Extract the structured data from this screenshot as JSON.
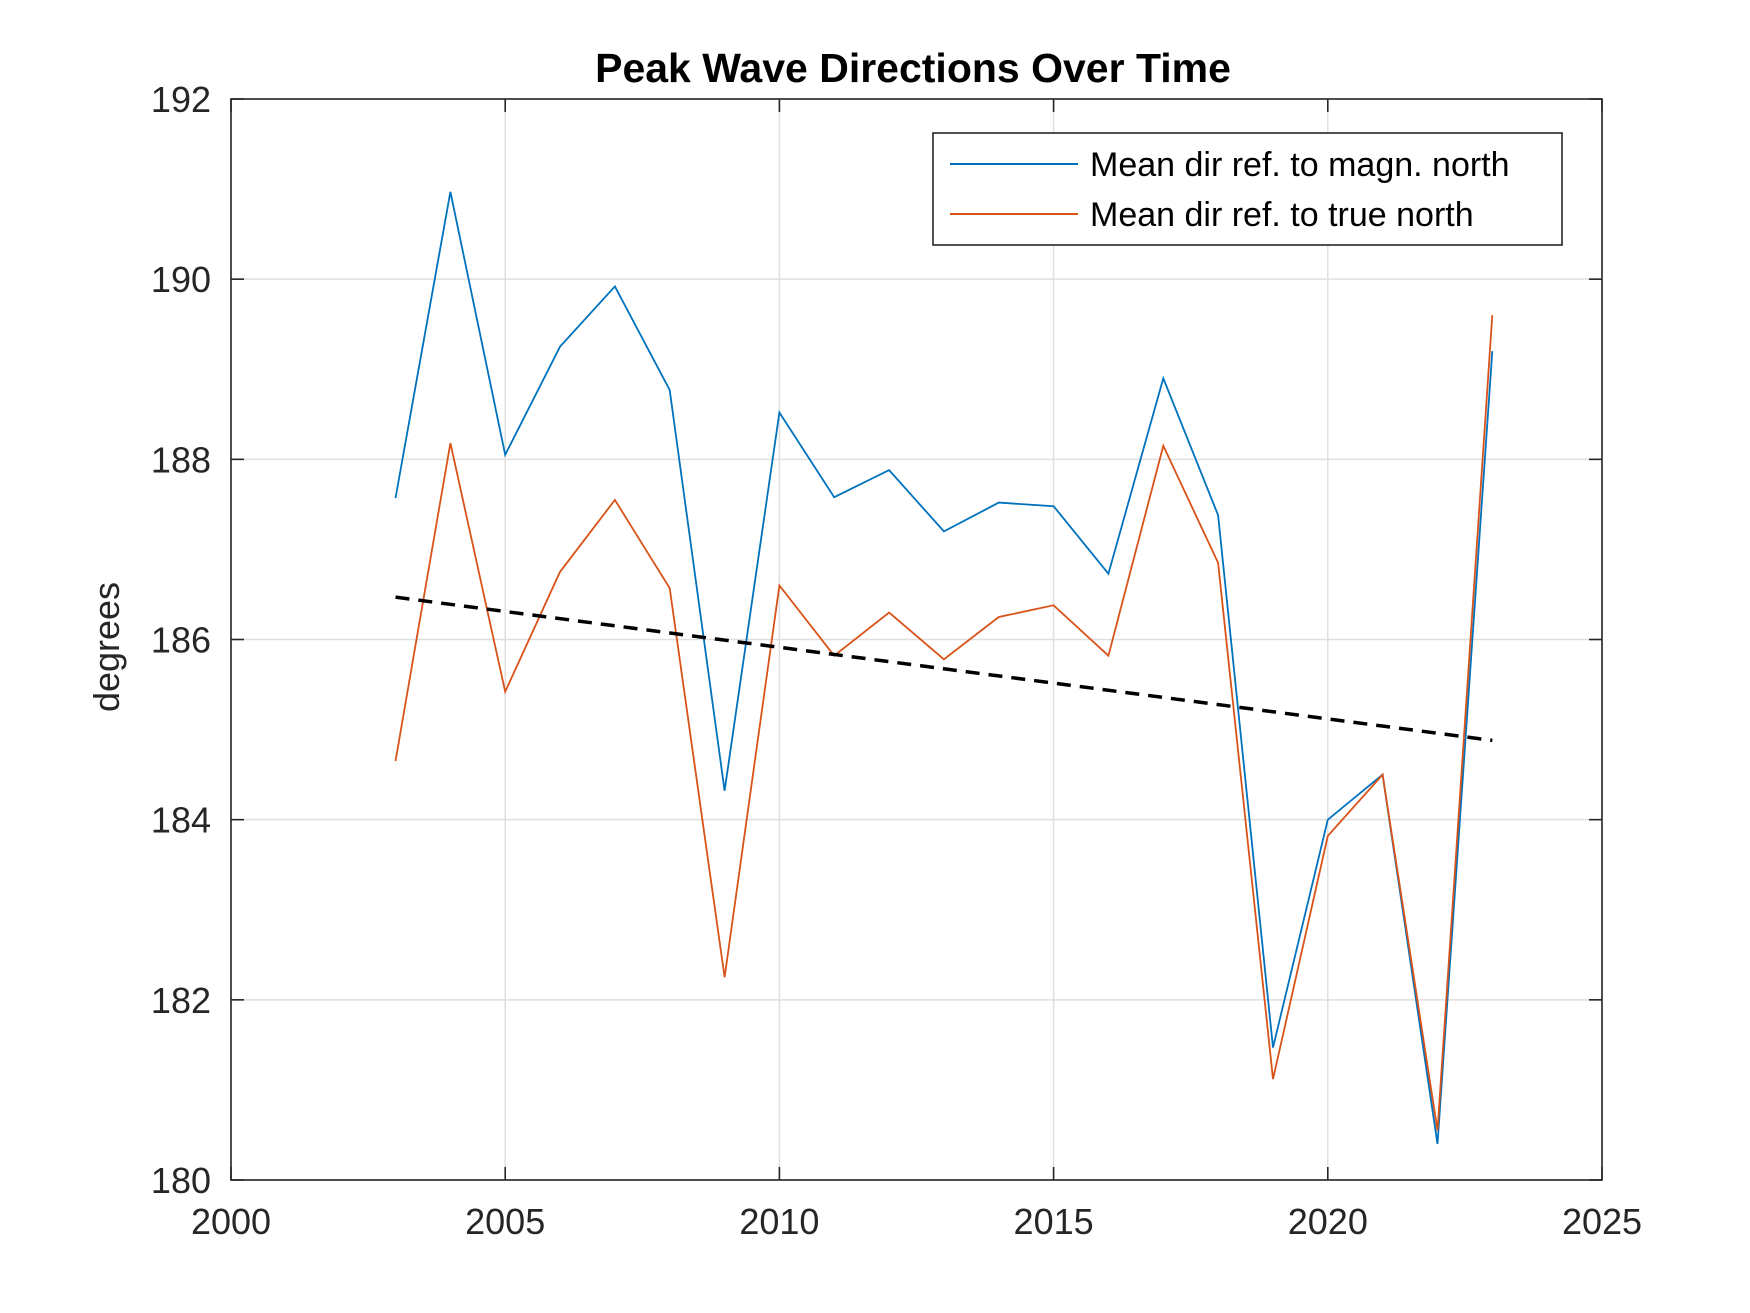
{
  "chart_data": {
    "type": "line",
    "title": "Peak Wave Directions Over Time",
    "xlabel": "",
    "ylabel": "degrees",
    "xlim": [
      2000,
      2025
    ],
    "ylim": [
      180,
      192
    ],
    "xticks": [
      2000,
      2005,
      2010,
      2015,
      2020,
      2025
    ],
    "yticks": [
      180,
      182,
      184,
      186,
      188,
      190,
      192
    ],
    "grid": true,
    "legend_position": "top-right",
    "x": [
      2003,
      2004,
      2005,
      2006,
      2007,
      2008,
      2009,
      2010,
      2011,
      2012,
      2013,
      2014,
      2015,
      2016,
      2017,
      2018,
      2019,
      2020,
      2021,
      2022,
      2023
    ],
    "series": [
      {
        "name": "Mean dir ref. to magn. north",
        "color": "#0072BD",
        "values": [
          187.57,
          190.97,
          188.05,
          189.25,
          189.92,
          188.77,
          184.32,
          188.52,
          187.58,
          187.88,
          187.2,
          187.52,
          187.48,
          186.73,
          188.9,
          187.38,
          181.47,
          184.0,
          184.5,
          180.4,
          189.2
        ]
      },
      {
        "name": "Mean dir ref. to true north",
        "color": "#D95319",
        "values": [
          184.65,
          188.18,
          185.42,
          186.75,
          187.55,
          186.57,
          182.25,
          186.6,
          185.82,
          186.3,
          185.78,
          186.25,
          186.38,
          185.82,
          188.15,
          186.85,
          181.12,
          183.82,
          184.5,
          180.55,
          189.6
        ]
      }
    ],
    "trend": {
      "style": "dashed",
      "color": "#000000",
      "x": [
        2003,
        2023
      ],
      "y": [
        186.47,
        184.88
      ]
    }
  }
}
